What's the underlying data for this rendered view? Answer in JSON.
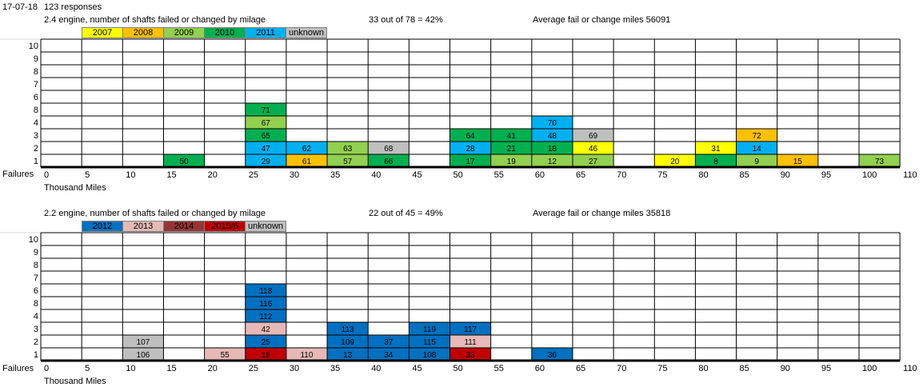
{
  "header": {
    "date": "17-07-18",
    "responses": "123 responses"
  },
  "colors": {
    "2007": "#ffff00",
    "2008": "#ffc000",
    "2009": "#92d050",
    "2010": "#00b050",
    "2011": "#00b0f0",
    "2012": "#0070c0",
    "2013": "#e6b9b8",
    "2014": "#963634",
    "2015/6": "#c00000",
    "unknown": "#bfbfbf"
  },
  "chart_data": [
    {
      "type": "table",
      "title": "2.4 engine, number of shafts failed or changed by milage",
      "stat": "33 out of 78 = 42%",
      "average": "Average fail or change miles 56091",
      "legend": [
        "2007",
        "2008",
        "2009",
        "2010",
        "2011",
        "unknown"
      ],
      "y_label": "Failures",
      "x_label": "Thousand Miles",
      "x_ticks": [
        "0",
        "5",
        "10",
        "15",
        "20",
        "25",
        "30",
        "35",
        "40",
        "45",
        "50",
        "55",
        "60",
        "65",
        "70",
        "75",
        "80",
        "85",
        "90",
        "95",
        "100",
        "110"
      ],
      "y_row_labels": [
        "10",
        "9",
        "8",
        "7",
        "6",
        "8",
        "4",
        "3",
        "2",
        "1"
      ],
      "cells": [
        {
          "x": 15,
          "level": 1,
          "label": "50",
          "year": "2010"
        },
        {
          "x": 25,
          "level": 1,
          "label": "29",
          "year": "2011"
        },
        {
          "x": 25,
          "level": 2,
          "label": "47",
          "year": "2011"
        },
        {
          "x": 25,
          "level": 3,
          "label": "65",
          "year": "2010"
        },
        {
          "x": 25,
          "level": 4,
          "label": "67",
          "year": "2009"
        },
        {
          "x": 25,
          "level": 5,
          "label": "71",
          "year": "2010"
        },
        {
          "x": 30,
          "level": 1,
          "label": "61",
          "year": "2008"
        },
        {
          "x": 30,
          "level": 2,
          "label": "62",
          "year": "2011"
        },
        {
          "x": 35,
          "level": 1,
          "label": "57",
          "year": "2009"
        },
        {
          "x": 35,
          "level": 2,
          "label": "63",
          "year": "2009"
        },
        {
          "x": 40,
          "level": 1,
          "label": "66",
          "year": "2010"
        },
        {
          "x": 40,
          "level": 2,
          "label": "68",
          "year": "unknown"
        },
        {
          "x": 50,
          "level": 1,
          "label": "17",
          "year": "2010"
        },
        {
          "x": 50,
          "level": 2,
          "label": "28",
          "year": "2011"
        },
        {
          "x": 50,
          "level": 3,
          "label": "64",
          "year": "2010"
        },
        {
          "x": 55,
          "level": 1,
          "label": "19",
          "year": "2009"
        },
        {
          "x": 55,
          "level": 2,
          "label": "21",
          "year": "2010"
        },
        {
          "x": 55,
          "level": 3,
          "label": "41",
          "year": "2010"
        },
        {
          "x": 60,
          "level": 1,
          "label": "12",
          "year": "2009"
        },
        {
          "x": 60,
          "level": 2,
          "label": "18",
          "year": "2010"
        },
        {
          "x": 60,
          "level": 3,
          "label": "48",
          "year": "2011"
        },
        {
          "x": 60,
          "level": 4,
          "label": "70",
          "year": "2011"
        },
        {
          "x": 65,
          "level": 1,
          "label": "27",
          "year": "2009"
        },
        {
          "x": 65,
          "level": 2,
          "label": "46",
          "year": "2007"
        },
        {
          "x": 65,
          "level": 3,
          "label": "69",
          "year": "unknown"
        },
        {
          "x": 75,
          "level": 1,
          "label": "20",
          "year": "2007"
        },
        {
          "x": 80,
          "level": 1,
          "label": "8",
          "year": "2010"
        },
        {
          "x": 80,
          "level": 2,
          "label": "31",
          "year": "2007"
        },
        {
          "x": 85,
          "level": 1,
          "label": "9",
          "year": "2009"
        },
        {
          "x": 85,
          "level": 2,
          "label": "14",
          "year": "2011"
        },
        {
          "x": 85,
          "level": 3,
          "label": "72",
          "year": "2008"
        },
        {
          "x": 90,
          "level": 1,
          "label": "15",
          "year": "2008"
        },
        {
          "x": 100,
          "level": 1,
          "label": "73",
          "year": "2009"
        }
      ]
    },
    {
      "type": "table",
      "title": "2.2 engine, number of shafts failed or changed by milage",
      "stat": "22 out of 45 = 49%",
      "average": "Average fail or change miles 35818",
      "legend": [
        "2012",
        "2013",
        "2014",
        "2015/6",
        "unknown"
      ],
      "y_label": "Failures",
      "x_label": "Thousand Miles",
      "x_ticks": [
        "0",
        "5",
        "10",
        "15",
        "20",
        "25",
        "30",
        "35",
        "40",
        "45",
        "50",
        "55",
        "60",
        "65",
        "70",
        "75",
        "80",
        "85",
        "90",
        "95",
        "100",
        "110"
      ],
      "y_row_labels": [
        "10",
        "9",
        "8",
        "7",
        "6",
        "8",
        "4",
        "3",
        "2",
        "1"
      ],
      "cells": [
        {
          "x": 10,
          "level": 1,
          "label": "106",
          "year": "unknown"
        },
        {
          "x": 10,
          "level": 2,
          "label": "107",
          "year": "unknown"
        },
        {
          "x": 20,
          "level": 1,
          "label": "55",
          "year": "2013"
        },
        {
          "x": 25,
          "level": 1,
          "label": "16",
          "year": "2015/6"
        },
        {
          "x": 25,
          "level": 2,
          "label": "25",
          "year": "2012"
        },
        {
          "x": 25,
          "level": 3,
          "label": "42",
          "year": "2013"
        },
        {
          "x": 25,
          "level": 4,
          "label": "112",
          "year": "2012"
        },
        {
          "x": 25,
          "level": 5,
          "label": "116",
          "year": "2012"
        },
        {
          "x": 25,
          "level": 6,
          "label": "118",
          "year": "2012"
        },
        {
          "x": 30,
          "level": 1,
          "label": "110",
          "year": "2013"
        },
        {
          "x": 35,
          "level": 1,
          "label": "13",
          "year": "2012"
        },
        {
          "x": 35,
          "level": 2,
          "label": "109",
          "year": "2012"
        },
        {
          "x": 35,
          "level": 3,
          "label": "113",
          "year": "2012"
        },
        {
          "x": 40,
          "level": 1,
          "label": "34",
          "year": "2012"
        },
        {
          "x": 40,
          "level": 2,
          "label": "37",
          "year": "2012"
        },
        {
          "x": 45,
          "level": 1,
          "label": "108",
          "year": "2012"
        },
        {
          "x": 45,
          "level": 2,
          "label": "115",
          "year": "2012"
        },
        {
          "x": 45,
          "level": 3,
          "label": "119",
          "year": "2012"
        },
        {
          "x": 50,
          "level": 1,
          "label": "33",
          "year": "2015/6"
        },
        {
          "x": 50,
          "level": 2,
          "label": "111",
          "year": "2013"
        },
        {
          "x": 50,
          "level": 3,
          "label": "117",
          "year": "2012"
        },
        {
          "x": 60,
          "level": 1,
          "label": "36",
          "year": "2012"
        }
      ]
    }
  ]
}
